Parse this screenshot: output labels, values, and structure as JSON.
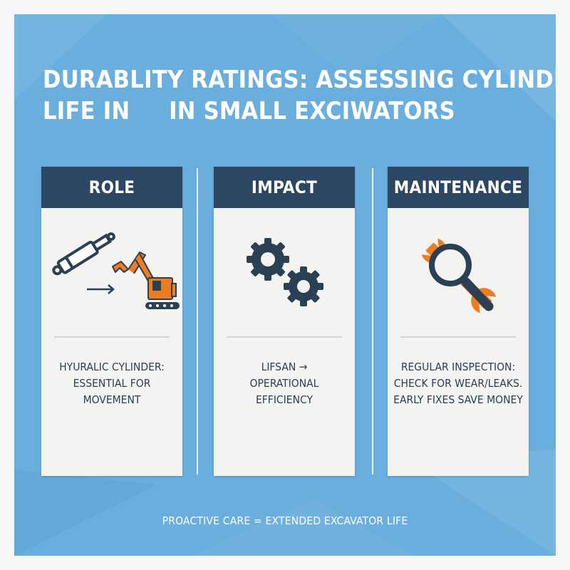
{
  "title": "DURABLITY RATINGS: ASSESSING CYLINDER\nLIFE IN     IN SMALL EXCIWATORS",
  "colors": {
    "background": "#6aaedd",
    "header": "#2b4763",
    "accent": "#ee7d22",
    "card": "#f3f3f2"
  },
  "cards": [
    {
      "header": "ROLE",
      "icon": "hydraulic-cylinder-excavator-icon",
      "lines": [
        "HYURALIC CYLINDER:",
        "ESSENTIAL FOR",
        "MOVEMENT"
      ]
    },
    {
      "header": "IMPACT",
      "icon": "gears-icon",
      "lines": [
        "LIFSAN →",
        "OPERATIONAL",
        "EFFICIENCY"
      ]
    },
    {
      "header": "MAINTENANCE",
      "icon": "magnifier-wrench-icon",
      "lines": [
        "REGULAR INSPECTION:",
        "CHECK FOR WEAR/LEAKS.",
        "EARLY FIXES SAVE MONEY"
      ]
    }
  ],
  "footer": "PROACTIVE CARE = EXTENDED EXCAVATOR LIFE"
}
